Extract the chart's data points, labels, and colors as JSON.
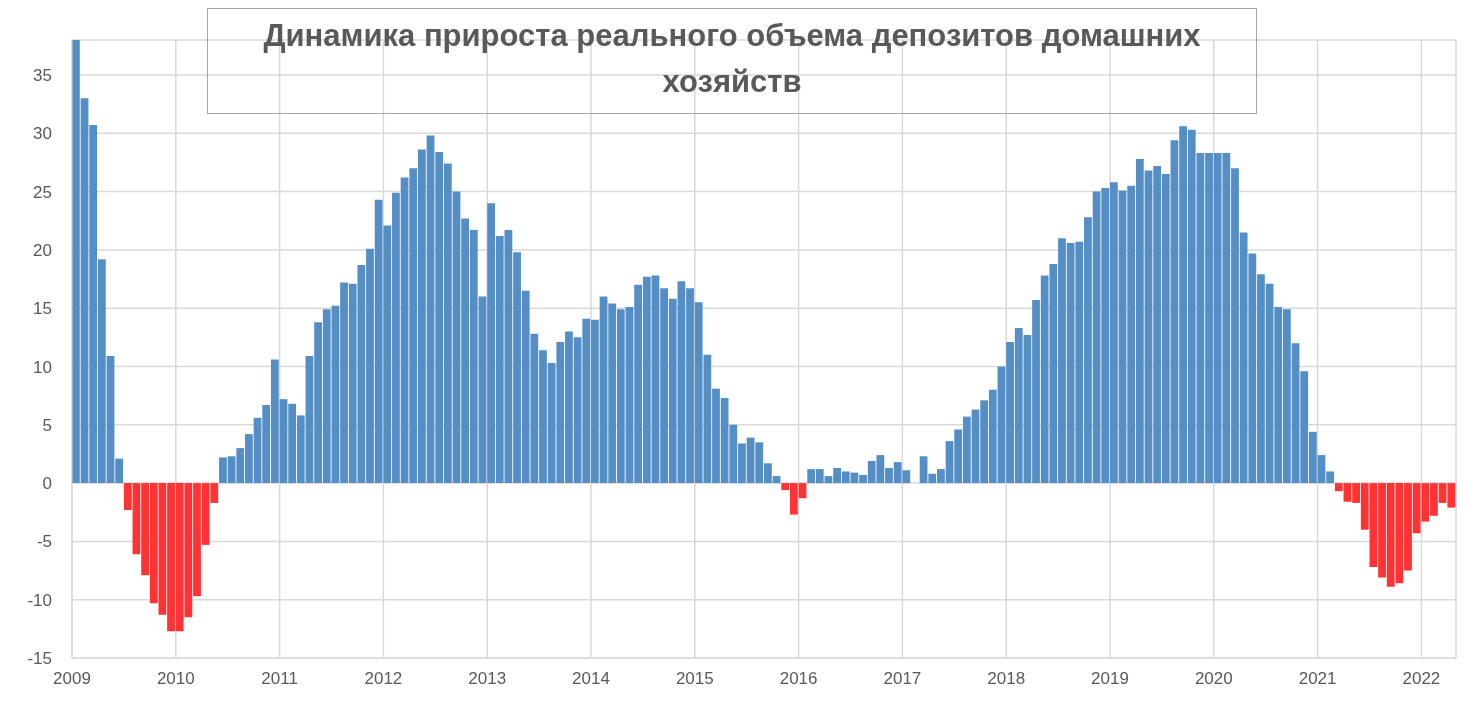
{
  "chart_data": {
    "type": "bar",
    "title": "Динамика прироста реального объема депозитов домашних хозяйств",
    "x": [
      "2009-01",
      "2009-02",
      "2009-03",
      "2009-04",
      "2009-05",
      "2009-06",
      "2009-07",
      "2009-08",
      "2009-09",
      "2009-10",
      "2009-11",
      "2009-12",
      "2010-01",
      "2010-02",
      "2010-03",
      "2010-04",
      "2010-05",
      "2010-06",
      "2010-07",
      "2010-08",
      "2010-09",
      "2010-10",
      "2010-11",
      "2010-12",
      "2011-01",
      "2011-02",
      "2011-03",
      "2011-04",
      "2011-05",
      "2011-06",
      "2011-07",
      "2011-08",
      "2011-09",
      "2011-10",
      "2011-11",
      "2011-12",
      "2012-01",
      "2012-02",
      "2012-03",
      "2012-04",
      "2012-05",
      "2012-06",
      "2012-07",
      "2012-08",
      "2012-09",
      "2012-10",
      "2012-11",
      "2012-12",
      "2013-01",
      "2013-02",
      "2013-03",
      "2013-04",
      "2013-05",
      "2013-06",
      "2013-07",
      "2013-08",
      "2013-09",
      "2013-10",
      "2013-11",
      "2013-12",
      "2014-01",
      "2014-02",
      "2014-03",
      "2014-04",
      "2014-05",
      "2014-06",
      "2014-07",
      "2014-08",
      "2014-09",
      "2014-10",
      "2014-11",
      "2014-12",
      "2015-01",
      "2015-02",
      "2015-03",
      "2015-04",
      "2015-05",
      "2015-06",
      "2015-07",
      "2015-08",
      "2015-09",
      "2015-10",
      "2015-11",
      "2015-12",
      "2016-01",
      "2016-02",
      "2016-03",
      "2016-04",
      "2016-05",
      "2016-06",
      "2016-07",
      "2016-08",
      "2016-09",
      "2016-10",
      "2016-11",
      "2016-12",
      "2017-01",
      "2017-02",
      "2017-03",
      "2017-04",
      "2017-05",
      "2017-06",
      "2017-07",
      "2017-08",
      "2017-09",
      "2017-10",
      "2017-11",
      "2017-12",
      "2018-01",
      "2018-02",
      "2018-03",
      "2018-04",
      "2018-05",
      "2018-06",
      "2018-07",
      "2018-08",
      "2018-09",
      "2018-10",
      "2018-11",
      "2018-12",
      "2019-01",
      "2019-02",
      "2019-03",
      "2019-04",
      "2019-05",
      "2019-06",
      "2019-07",
      "2019-08",
      "2019-09",
      "2019-10",
      "2019-11",
      "2019-12",
      "2020-01",
      "2020-02",
      "2020-03",
      "2020-04",
      "2020-05",
      "2020-06",
      "2020-07",
      "2020-08",
      "2020-09",
      "2020-10",
      "2020-11",
      "2020-12",
      "2021-01",
      "2021-02",
      "2021-03",
      "2021-04",
      "2021-05",
      "2021-06",
      "2021-07",
      "2021-08",
      "2021-09",
      "2021-10",
      "2021-11",
      "2021-12",
      "2022-01",
      "2022-02",
      "2022-03",
      "2022-04"
    ],
    "values": [
      38,
      33,
      30.7,
      19.2,
      10.9,
      2.1,
      -2.3,
      -6.1,
      -7.9,
      -10.3,
      -11.3,
      -12.7,
      -12.7,
      -11.5,
      -9.7,
      -5.3,
      -1.7,
      2.2,
      2.3,
      3.0,
      4.2,
      5.6,
      6.7,
      10.6,
      7.2,
      6.8,
      5.8,
      10.9,
      13.8,
      14.9,
      15.2,
      17.2,
      17.1,
      18.7,
      20.1,
      24.3,
      22.1,
      24.9,
      26.2,
      27.0,
      28.6,
      29.8,
      28.4,
      27.4,
      25.0,
      22.7,
      21.7,
      16.0,
      24.0,
      21.2,
      21.7,
      19.8,
      16.5,
      12.8,
      11.4,
      10.3,
      12.1,
      13.0,
      12.5,
      14.1,
      14.0,
      16.0,
      15.4,
      14.9,
      15.1,
      17.0,
      17.7,
      17.8,
      16.7,
      15.8,
      17.3,
      16.7,
      15.5,
      11.0,
      8.1,
      7.3,
      5.0,
      3.4,
      3.9,
      3.5,
      1.7,
      0.6,
      -0.6,
      -2.7,
      -1.3,
      1.2,
      1.2,
      0.6,
      1.3,
      1.0,
      0.9,
      0.7,
      1.9,
      2.4,
      1.3,
      1.8,
      1.1,
      null,
      2.3,
      0.8,
      1.2,
      3.6,
      4.6,
      5.7,
      6.3,
      7.1,
      8.0,
      10.0,
      12.1,
      13.3,
      12.7,
      15.7,
      17.8,
      18.8,
      21.0,
      20.6,
      20.7,
      22.8,
      25.0,
      25.3,
      25.8,
      25.1,
      25.5,
      27.8,
      26.8,
      27.2,
      26.5,
      29.4,
      30.6,
      30.3,
      28.3,
      28.3,
      28.3,
      28.3,
      27.0,
      21.5,
      19.7,
      17.9,
      17.1,
      15.1,
      14.9,
      12.0,
      9.6,
      4.4,
      2.4,
      1.0,
      -0.7,
      -1.6,
      -1.7,
      -4.0,
      -7.2,
      -8.1,
      -8.9,
      -8.6,
      -7.5,
      -4.3,
      -3.3,
      -2.8,
      -1.7,
      -2.1
    ],
    "colors": [
      "#558ec5",
      "#558ec5",
      "#558ec5",
      "#558ec5",
      "#558ec5",
      "#558ec5",
      "#ff3333",
      "#ff3333",
      "#ff3333",
      "#ff3333",
      "#ff3333",
      "#ff3333",
      "#ff3333",
      "#ff3333",
      "#ff3333",
      "#ff3333",
      "#ff3333",
      "#558ec5",
      "#558ec5",
      "#558ec5",
      "#558ec5",
      "#558ec5",
      "#558ec5",
      "#558ec5",
      "#558ec5",
      "#558ec5",
      "#558ec5",
      "#558ec5",
      "#558ec5",
      "#558ec5",
      "#558ec5",
      "#558ec5",
      "#558ec5",
      "#558ec5",
      "#558ec5",
      "#558ec5",
      "#558ec5",
      "#558ec5",
      "#558ec5",
      "#558ec5",
      "#558ec5",
      "#558ec5",
      "#558ec5",
      "#558ec5",
      "#558ec5",
      "#558ec5",
      "#558ec5",
      "#558ec5",
      "#558ec5",
      "#558ec5",
      "#558ec5",
      "#558ec5",
      "#558ec5",
      "#558ec5",
      "#558ec5",
      "#558ec5",
      "#558ec5",
      "#558ec5",
      "#558ec5",
      "#558ec5",
      "#558ec5",
      "#558ec5",
      "#558ec5",
      "#558ec5",
      "#558ec5",
      "#558ec5",
      "#558ec5",
      "#558ec5",
      "#558ec5",
      "#558ec5",
      "#558ec5",
      "#558ec5",
      "#558ec5",
      "#558ec5",
      "#558ec5",
      "#558ec5",
      "#558ec5",
      "#558ec5",
      "#558ec5",
      "#558ec5",
      "#558ec5",
      "#558ec5",
      "#ff3333",
      "#ff3333",
      "#ff3333",
      "#558ec5",
      "#558ec5",
      "#558ec5",
      "#558ec5",
      "#558ec5",
      "#558ec5",
      "#558ec5",
      "#558ec5",
      "#558ec5",
      "#558ec5",
      "#558ec5",
      "#558ec5",
      "#558ec5",
      "#558ec5",
      "#558ec5",
      "#558ec5",
      "#558ec5",
      "#558ec5",
      "#558ec5",
      "#558ec5",
      "#558ec5",
      "#558ec5",
      "#558ec5",
      "#558ec5",
      "#558ec5",
      "#558ec5",
      "#558ec5",
      "#558ec5",
      "#558ec5",
      "#558ec5",
      "#558ec5",
      "#558ec5",
      "#558ec5",
      "#558ec5",
      "#558ec5",
      "#558ec5",
      "#558ec5",
      "#558ec5",
      "#558ec5",
      "#558ec5",
      "#558ec5",
      "#558ec5",
      "#558ec5",
      "#558ec5",
      "#558ec5",
      "#558ec5",
      "#558ec5",
      "#558ec5",
      "#558ec5",
      "#558ec5",
      "#558ec5",
      "#558ec5",
      "#558ec5",
      "#558ec5",
      "#558ec5",
      "#558ec5",
      "#558ec5",
      "#558ec5",
      "#558ec5",
      "#558ec5",
      "#558ec5",
      "#ff3333",
      "#ff3333",
      "#ff3333",
      "#ff3333",
      "#ff3333",
      "#ff3333",
      "#ff3333",
      "#ff3333",
      "#ff3333",
      "#ff3333",
      "#ff3333",
      "#ff3333",
      "#ff3333",
      "#ff3333"
    ],
    "xlim": [
      "2009",
      "2022-05"
    ],
    "xticks": [
      "2009",
      "2010",
      "2011",
      "2012",
      "2013",
      "2014",
      "2015",
      "2016",
      "2017",
      "2018",
      "2019",
      "2020",
      "2021",
      "2022"
    ],
    "ylim": [
      -15,
      38
    ],
    "yticks": [
      -15,
      -10,
      -5,
      0,
      5,
      10,
      15,
      20,
      25,
      30,
      35
    ],
    "grid": true
  }
}
